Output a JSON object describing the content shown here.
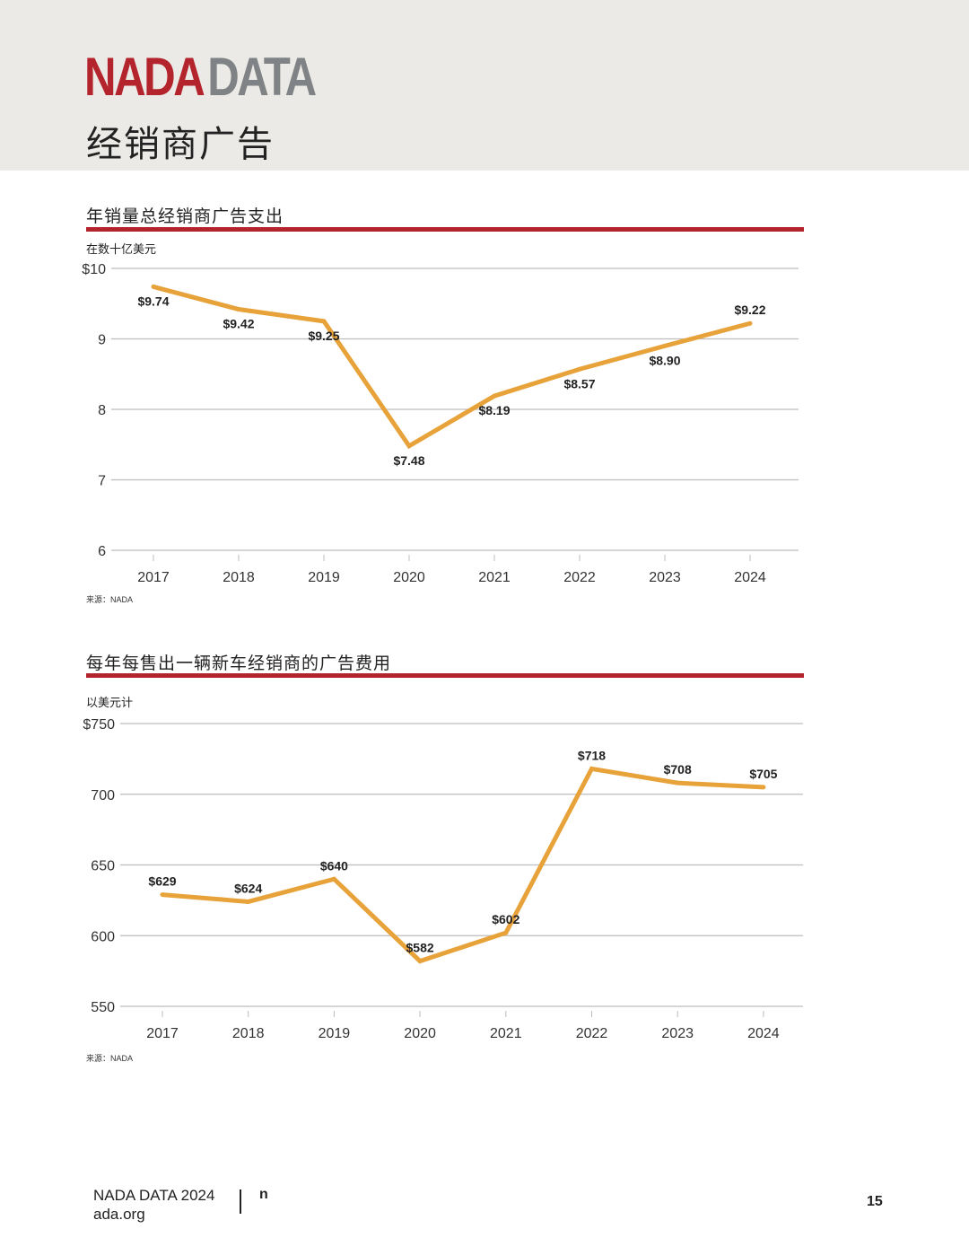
{
  "header": {
    "brand_part1": "NADA",
    "brand_part2": "DATA",
    "section_title": "经销商广告"
  },
  "colors": {
    "brand_red": "#b3242c",
    "brand_gray": "#808385",
    "header_band": "#ebeae6",
    "line": "#e8a23a",
    "gridline": "#bdbdbd"
  },
  "chart_data": [
    {
      "type": "line",
      "title": "年销量总经销商广告支出",
      "unit_label": "在数十亿美元",
      "source": "来源：NADA",
      "x": [
        "2017",
        "2018",
        "2019",
        "2020",
        "2021",
        "2022",
        "2023",
        "2024"
      ],
      "series": [
        {
          "values": [
            9.74,
            9.42,
            9.25,
            7.48,
            8.19,
            8.57,
            8.9,
            9.22
          ]
        }
      ],
      "data_labels": [
        "$9.74",
        "$9.42",
        "$9.25",
        "$7.48",
        "$8.19",
        "$8.57",
        "$8.90",
        "$9.22"
      ],
      "yticks": [
        "$10",
        "9",
        "8",
        "7",
        "6"
      ],
      "ylim": [
        6,
        10
      ],
      "grid": true
    },
    {
      "type": "line",
      "title": "每年每售出一辆新车经销商的广告费用",
      "unit_label": "以美元计",
      "source": "来源：NADA",
      "x": [
        "2017",
        "2018",
        "2019",
        "2020",
        "2021",
        "2022",
        "2023",
        "2024"
      ],
      "series": [
        {
          "values": [
            629,
            624,
            640,
            582,
            602,
            718,
            708,
            705
          ]
        }
      ],
      "data_labels": [
        "$629",
        "$624",
        "$640",
        "$582",
        "$602",
        "$718",
        "$708",
        "$705"
      ],
      "yticks": [
        "$750",
        "700",
        "650",
        "600",
        "550"
      ],
      "ylim": [
        550,
        750
      ],
      "grid": true
    }
  ],
  "footer": {
    "line1": "NADA DATA 2024",
    "line2": "ada.org",
    "side_letter": "n",
    "page_number": "15"
  }
}
